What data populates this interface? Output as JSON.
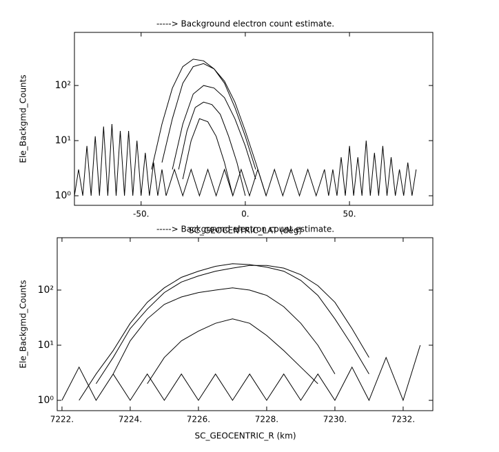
{
  "chart_data": [
    {
      "type": "line",
      "title": "-----> Background electron count estimate.",
      "x_label": "SC_GEOCENTRIC_LAT (deg)",
      "y_label": "Ele_Backgmd_Counts",
      "xlim": [
        -82,
        90
      ],
      "ylim": [
        0.67,
        920
      ],
      "log_y": true,
      "xticks": [
        {
          "value": -50,
          "label": "-50."
        },
        {
          "value": 0,
          "label": "0."
        },
        {
          "value": 50,
          "label": "50."
        }
      ],
      "yticks": [
        {
          "value": 1,
          "label": "10⁰"
        },
        {
          "value": 10,
          "label": "10¹"
        },
        {
          "value": 100,
          "label": "10²"
        }
      ],
      "series": [
        {
          "color": "#000000",
          "x": [
            -45,
            -40,
            -35,
            -30,
            -25,
            -20,
            -15,
            -10,
            -5,
            0,
            5
          ],
          "values": [
            3,
            20,
            90,
            220,
            300,
            280,
            200,
            110,
            40,
            12,
            3
          ]
        },
        {
          "color": "#000000",
          "x": [
            -40,
            -35,
            -30,
            -25,
            -20,
            -15,
            -10,
            -5,
            0,
            5,
            10
          ],
          "values": [
            4,
            25,
            110,
            220,
            250,
            200,
            120,
            50,
            15,
            4,
            1
          ]
        },
        {
          "color": "#000000",
          "x": [
            -35,
            -30,
            -25,
            -20,
            -15,
            -10,
            -5,
            0,
            5
          ],
          "values": [
            3,
            20,
            70,
            100,
            90,
            60,
            25,
            8,
            2
          ]
        },
        {
          "color": "#000000",
          "x": [
            -32,
            -28,
            -24,
            -20,
            -16,
            -12,
            -8,
            -4,
            0
          ],
          "values": [
            3,
            15,
            40,
            50,
            45,
            30,
            12,
            4,
            1
          ]
        },
        {
          "color": "#000000",
          "x": [
            -30,
            -26,
            -22,
            -18,
            -14,
            -10,
            -6
          ],
          "values": [
            2,
            10,
            25,
            22,
            12,
            4,
            1
          ]
        },
        {
          "color": "#000000",
          "x": [
            -82,
            -80,
            -78,
            -76,
            -74,
            -72,
            -70,
            -68,
            -66,
            -64,
            -62,
            -60,
            -58,
            -56,
            -54,
            -52,
            -50,
            -48,
            -46,
            -44,
            -42,
            -40,
            -38,
            -34,
            -30,
            -26,
            -22,
            -18,
            -14,
            -10,
            -6,
            -2,
            2,
            6,
            10,
            14,
            18,
            22,
            26,
            30,
            34,
            38,
            40,
            42,
            44,
            46,
            48,
            50,
            52,
            54,
            56,
            58,
            60,
            62,
            64,
            66,
            68,
            70,
            72,
            74,
            76,
            78,
            80,
            82
          ],
          "values": [
            1,
            3,
            1,
            8,
            1,
            12,
            1,
            18,
            1,
            20,
            1,
            15,
            1,
            15,
            1,
            10,
            1,
            6,
            1,
            4,
            1,
            3,
            1,
            3,
            1,
            3,
            1,
            3,
            1,
            3,
            1,
            3,
            1,
            3,
            1,
            3,
            1,
            3,
            1,
            3,
            1,
            3,
            1,
            3,
            1,
            5,
            1,
            8,
            1,
            5,
            1,
            10,
            1,
            6,
            1,
            8,
            1,
            5,
            1,
            3,
            1,
            4,
            1,
            3
          ]
        }
      ]
    },
    {
      "type": "line",
      "title": "-----> Background electron count estimate.",
      "x_label": "SC_GEOCENTRIC_R (km)",
      "y_label": "Ele_Backgmd_Counts",
      "xlim": [
        7221.86,
        7232.87
      ],
      "ylim": [
        0.65,
        890
      ],
      "log_y": true,
      "xticks": [
        {
          "value": 7222,
          "label": "7222."
        },
        {
          "value": 7224,
          "label": "7224."
        },
        {
          "value": 7226,
          "label": "7226."
        },
        {
          "value": 7228,
          "label": "7228."
        },
        {
          "value": 7230,
          "label": "7230."
        },
        {
          "value": 7232,
          "label": "7232."
        }
      ],
      "yticks": [
        {
          "value": 1,
          "label": "10⁰"
        },
        {
          "value": 10,
          "label": "10¹"
        },
        {
          "value": 100,
          "label": "10²"
        }
      ],
      "series": [
        {
          "color": "#000000",
          "x": [
            7222.5,
            7223,
            7223.5,
            7224,
            7224.5,
            7225,
            7225.5,
            7226,
            7226.5,
            7227,
            7227.5,
            7228,
            7228.5,
            7229,
            7229.5,
            7230,
            7230.5,
            7231
          ],
          "values": [
            1,
            3,
            8,
            25,
            60,
            110,
            170,
            220,
            270,
            300,
            290,
            260,
            220,
            150,
            80,
            30,
            10,
            3
          ]
        },
        {
          "color": "#000000",
          "x": [
            7223,
            7223.5,
            7224,
            7224.5,
            7225,
            7225.5,
            7226,
            7226.5,
            7227,
            7227.5,
            7228,
            7228.5,
            7229,
            7229.5,
            7230,
            7230.5,
            7231
          ],
          "values": [
            2,
            6,
            20,
            45,
            90,
            140,
            180,
            220,
            250,
            280,
            280,
            250,
            190,
            120,
            60,
            20,
            6
          ]
        },
        {
          "color": "#000000",
          "x": [
            7223.5,
            7224,
            7224.5,
            7225,
            7225.5,
            7226,
            7226.5,
            7227,
            7227.5,
            7228,
            7228.5,
            7229,
            7229.5,
            7230
          ],
          "values": [
            3,
            12,
            30,
            55,
            75,
            90,
            100,
            110,
            100,
            80,
            50,
            25,
            10,
            3
          ]
        },
        {
          "color": "#000000",
          "x": [
            7224.5,
            7225,
            7225.5,
            7226,
            7226.5,
            7227,
            7227.5,
            7228,
            7228.5,
            7229,
            7229.5
          ],
          "values": [
            2,
            6,
            12,
            18,
            25,
            30,
            25,
            15,
            8,
            4,
            2
          ]
        },
        {
          "color": "#000000",
          "x": [
            7222,
            7222.5,
            7223,
            7223.5,
            7224,
            7224.5,
            7225,
            7225.5,
            7226,
            7226.5,
            7227,
            7227.5,
            7228,
            7228.5,
            7229,
            7229.5,
            7230,
            7230.5,
            7231,
            7231.5,
            7232,
            7232.5
          ],
          "values": [
            1,
            4,
            1,
            3,
            1,
            3,
            1,
            3,
            1,
            3,
            1,
            3,
            1,
            3,
            1,
            3,
            1,
            4,
            1,
            6,
            1,
            10
          ]
        }
      ]
    }
  ]
}
